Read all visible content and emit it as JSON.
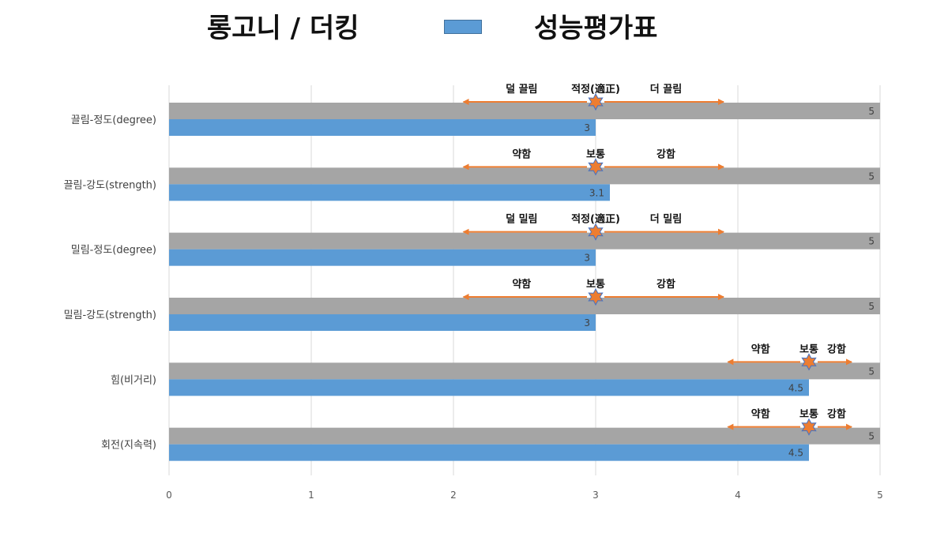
{
  "header": {
    "title_left": "롱고니 / 더킹",
    "title_right": "성능평가표"
  },
  "colors": {
    "series_max": "#a5a5a5",
    "series_value": "#5b9bd5",
    "arrow": "#ed7d31",
    "star_fill": "#ed7d31",
    "star_stroke": "#4472c4",
    "grid": "#d9d9d9"
  },
  "chart_data": {
    "type": "bar",
    "orientation": "horizontal",
    "categories": [
      "끌림-정도(degree)",
      "끌림-강도(strength)",
      "밀림-정도(degree)",
      "밀림-강도(strength)",
      "힘(비거리)",
      "회전(지속력)"
    ],
    "series": [
      {
        "values": [
          5,
          5,
          5,
          5,
          5,
          5
        ]
      },
      {
        "values": [
          3,
          3.1,
          3,
          3,
          4.5,
          4.5
        ]
      }
    ],
    "xlim": [
      0,
      5
    ],
    "x_ticks": [
      "0",
      "1",
      "2",
      "3",
      "4",
      "5"
    ],
    "grid": true,
    "annotations": [
      {
        "left": "덜 끌림",
        "center": "적정(適正)",
        "right": "더 끌림",
        "center_value": 3,
        "from": 2.07,
        "to": 3.9
      },
      {
        "left": "약함",
        "center": "보통",
        "right": "강함",
        "center_value": 3,
        "from": 2.07,
        "to": 3.9
      },
      {
        "left": "덜 밀림",
        "center": "적정(適正)",
        "right": "더 밀림",
        "center_value": 3,
        "from": 2.07,
        "to": 3.9
      },
      {
        "left": "약함",
        "center": "보통",
        "right": "강함",
        "center_value": 3,
        "from": 2.07,
        "to": 3.9
      },
      {
        "left": "약함",
        "center": "보통",
        "right": "강함",
        "center_value": 4.5,
        "from": 3.93,
        "to": 4.8
      },
      {
        "left": "약함",
        "center": "보통",
        "right": "강함",
        "center_value": 4.5,
        "from": 3.93,
        "to": 4.8
      }
    ]
  }
}
